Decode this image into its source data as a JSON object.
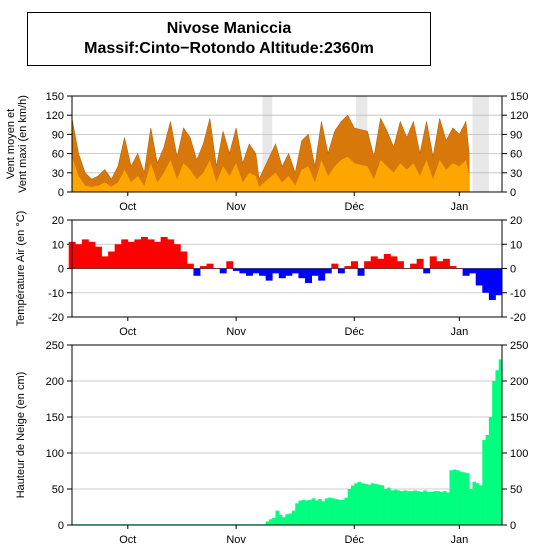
{
  "header": {
    "title": "Nivose Maniccia",
    "subtitle": "Massif:Cinto−Rotondo Altitude:2360m"
  },
  "colors": {
    "wind_max": "#d9780a",
    "wind_mean": "#ffa500",
    "temp_positive": "#ff0000",
    "temp_negative": "#0000ff",
    "snow": "#00ff7f",
    "missing": "#e8e8e8",
    "grid": "#bdbdbd"
  },
  "chart_data": [
    {
      "type": "area",
      "id": "wind",
      "ylabel": [
        "Vent moyen et",
        "Vent maxi (en km/h)"
      ],
      "ylim": [
        0,
        150
      ],
      "yticks": [
        0,
        30,
        60,
        90,
        120,
        150
      ],
      "xlim": [
        0,
        131
      ],
      "xtick_labels": [
        {
          "label": "Oct",
          "x": 17
        },
        {
          "label": "Nov",
          "x": 50
        },
        {
          "label": "Déc",
          "x": 86
        },
        {
          "label": "Jan",
          "x": 118
        }
      ],
      "grid": true,
      "missing_ranges": [
        [
          58,
          61
        ],
        [
          86.5,
          90
        ],
        [
          122,
          127
        ]
      ],
      "x": [
        0,
        2,
        4,
        6,
        8,
        10,
        12,
        14,
        16,
        18,
        20,
        22,
        24,
        26,
        28,
        30,
        32,
        34,
        36,
        38,
        40,
        42,
        44,
        46,
        48,
        50,
        52,
        54,
        56,
        57,
        62,
        64,
        66,
        68,
        70,
        72,
        74,
        76,
        78,
        80,
        82,
        84,
        86,
        90,
        92,
        94,
        96,
        98,
        100,
        102,
        104,
        106,
        108,
        110,
        112,
        114,
        116,
        118,
        120,
        121
      ],
      "series": [
        {
          "name": "Vent maxi",
          "values": [
            115,
            60,
            30,
            20,
            25,
            35,
            20,
            40,
            85,
            40,
            60,
            30,
            100,
            45,
            70,
            110,
            55,
            100,
            85,
            50,
            75,
            115,
            40,
            95,
            60,
            100,
            45,
            75,
            60,
            20,
            75,
            40,
            60,
            30,
            80,
            90,
            40,
            110,
            60,
            95,
            110,
            120,
            100,
            95,
            55,
            115,
            95,
            70,
            110,
            85,
            110,
            60,
            110,
            55,
            115,
            80,
            100,
            90,
            110,
            60
          ]
        },
        {
          "name": "Vent moyen",
          "values": [
            55,
            25,
            10,
            8,
            10,
            15,
            8,
            15,
            35,
            15,
            25,
            10,
            45,
            15,
            30,
            50,
            20,
            45,
            35,
            20,
            30,
            50,
            15,
            40,
            25,
            45,
            15,
            30,
            25,
            8,
            30,
            15,
            25,
            10,
            35,
            40,
            15,
            50,
            25,
            40,
            50,
            55,
            45,
            40,
            20,
            50,
            40,
            30,
            45,
            35,
            45,
            25,
            50,
            20,
            50,
            35,
            45,
            40,
            50,
            25
          ]
        }
      ]
    },
    {
      "type": "area",
      "id": "temperature",
      "ylabel": [
        "Température Air (en °C)"
      ],
      "ylim": [
        -20,
        20
      ],
      "yticks": [
        -20,
        -10,
        0,
        10,
        20
      ],
      "xlim": [
        0,
        131
      ],
      "xtick_labels": [
        {
          "label": "Oct",
          "x": 17
        },
        {
          "label": "Nov",
          "x": 50
        },
        {
          "label": "Déc",
          "x": 86
        },
        {
          "label": "Jan",
          "x": 118
        }
      ],
      "grid": true,
      "x": [
        0,
        2,
        4,
        6,
        8,
        10,
        12,
        14,
        16,
        18,
        20,
        22,
        24,
        26,
        28,
        30,
        32,
        34,
        36,
        38,
        40,
        42,
        44,
        46,
        48,
        50,
        52,
        54,
        56,
        58,
        60,
        62,
        64,
        66,
        68,
        70,
        72,
        74,
        76,
        78,
        80,
        82,
        84,
        86,
        88,
        90,
        92,
        94,
        96,
        98,
        100,
        102,
        104,
        106,
        108,
        110,
        112,
        114,
        116,
        118,
        120,
        122,
        124,
        126,
        128,
        130
      ],
      "series": [
        {
          "name": "Température",
          "values": [
            11,
            10,
            12,
            11,
            9,
            5,
            7,
            10,
            12,
            11,
            12,
            13,
            12,
            11,
            13,
            12,
            10,
            7,
            2,
            -3,
            1,
            2,
            0,
            -2,
            3,
            -1,
            -2,
            -3,
            -2,
            -3,
            -5,
            -2,
            -4,
            -3,
            -2,
            -4,
            -6,
            -3,
            -5,
            -2,
            2,
            -2,
            1,
            3,
            -3,
            3,
            5,
            4,
            6,
            5,
            3,
            0,
            2,
            4,
            -2,
            5,
            3,
            4,
            1,
            0,
            -3,
            -2,
            -7,
            -10,
            -13,
            -11
          ]
        }
      ]
    },
    {
      "type": "bar",
      "id": "snow",
      "ylabel": [
        "Hauteur de Neige (en cm)"
      ],
      "ylim": [
        0,
        250
      ],
      "yticks": [
        0,
        50,
        100,
        150,
        200,
        250
      ],
      "xlim": [
        0,
        131
      ],
      "xtick_labels": [
        {
          "label": "Oct",
          "x": 17
        },
        {
          "label": "Nov",
          "x": 50
        },
        {
          "label": "Déc",
          "x": 86
        },
        {
          "label": "Jan",
          "x": 118
        }
      ],
      "grid": true,
      "x": [
        0,
        10,
        20,
        30,
        40,
        50,
        58,
        59,
        60,
        61,
        62,
        63,
        64,
        65,
        66,
        67,
        68,
        69,
        70,
        71,
        72,
        73,
        74,
        75,
        76,
        77,
        78,
        79,
        80,
        81,
        82,
        83,
        84,
        85,
        86,
        87,
        88,
        89,
        90,
        91,
        92,
        93,
        94,
        95,
        96,
        97,
        98,
        99,
        100,
        101,
        102,
        103,
        104,
        105,
        106,
        107,
        108,
        109,
        110,
        111,
        112,
        113,
        114,
        115,
        116,
        117,
        118,
        119,
        120,
        121,
        122,
        123,
        124,
        125,
        126,
        127,
        128,
        129,
        130
      ],
      "series": [
        {
          "name": "Hauteur de Neige",
          "values": [
            1,
            1,
            1,
            1,
            1,
            1,
            1,
            5,
            8,
            10,
            20,
            14,
            11,
            15,
            16,
            20,
            30,
            34,
            35,
            34,
            35,
            37,
            34,
            36,
            33,
            37,
            38,
            37,
            36,
            35,
            35,
            38,
            50,
            55,
            58,
            60,
            58,
            57,
            56,
            58,
            57,
            56,
            55,
            50,
            52,
            48,
            49,
            48,
            47,
            48,
            47,
            47,
            48,
            47,
            46,
            48,
            46,
            46,
            47,
            47,
            46,
            47,
            45,
            76,
            77,
            76,
            74,
            73,
            72,
            50,
            60,
            58,
            55,
            118,
            125,
            150,
            200,
            215,
            230
          ]
        }
      ]
    }
  ]
}
